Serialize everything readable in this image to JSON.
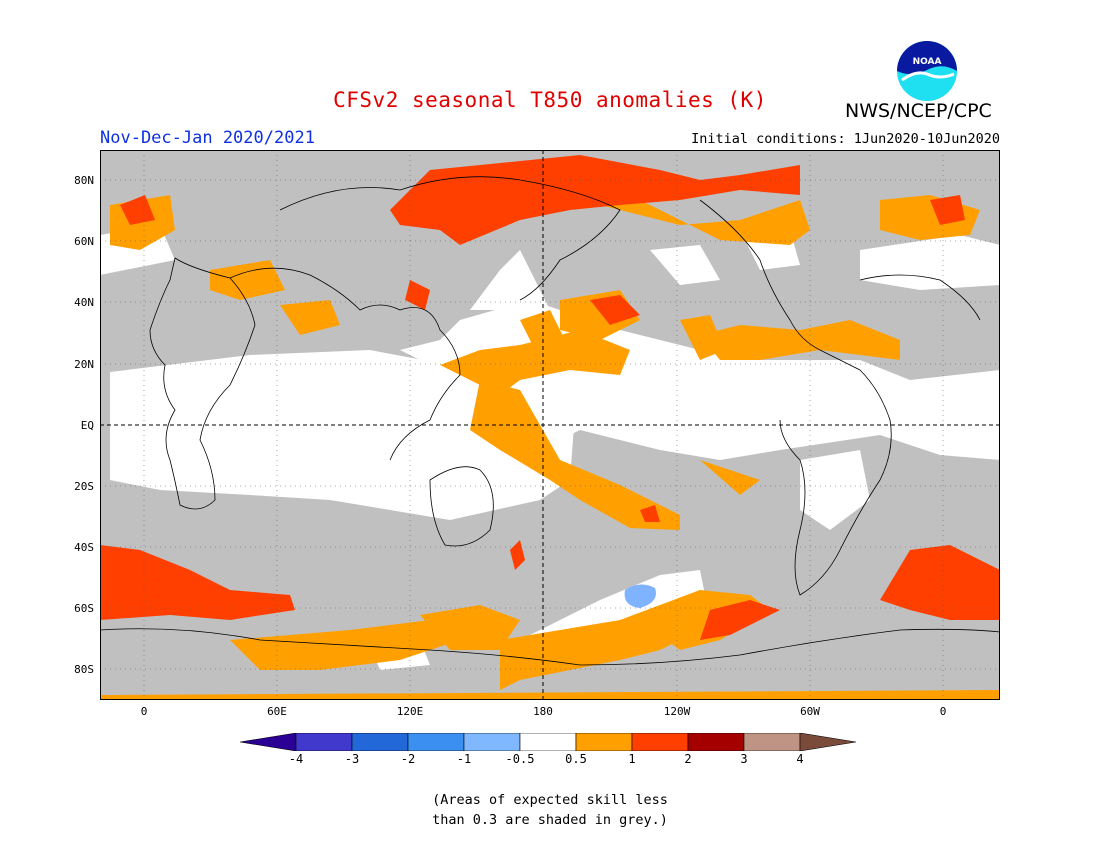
{
  "header": {
    "title": "CFSv2 seasonal T850 anomalies (K)",
    "agency": "NWS/NCEP/CPC",
    "season": "Nov-Dec-Jan 2020/2021",
    "initial_conditions": "Initial conditions: 1Jun2020-10Jun2020",
    "logo_text": "NOAA"
  },
  "map": {
    "lat_labels": [
      "80N",
      "60N",
      "40N",
      "20N",
      "EQ",
      "20S",
      "40S",
      "60S",
      "80S"
    ],
    "lon_labels": [
      "0",
      "60E",
      "120E",
      "180",
      "120W",
      "60W",
      "0"
    ],
    "colors": {
      "grey": "#c0c0c0",
      "white": "#ffffff",
      "orange": "#ff9f00",
      "red_orange": "#ff3f00",
      "light_blue": "#7fb3ff"
    }
  },
  "colorbar": {
    "ticks": [
      "-4",
      "-3",
      "-2",
      "-1",
      "-0.5",
      "0.5",
      "1",
      "2",
      "3",
      "4"
    ],
    "colors": [
      "#2a0095",
      "#4039cc",
      "#2368d9",
      "#3b8ff0",
      "#7fb8ff",
      "#ffffff",
      "#ff9f00",
      "#ff3f00",
      "#a50000",
      "#c09484",
      "#7a4a3a"
    ]
  },
  "notes": {
    "line1": "(Areas of expected skill less",
    "line2": "than 0.3 are shaded in grey.)"
  }
}
